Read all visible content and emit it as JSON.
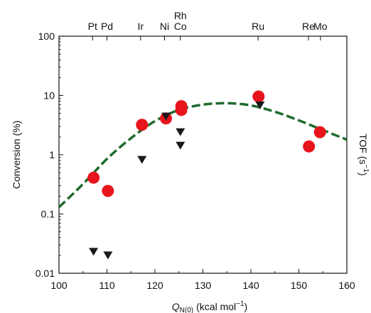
{
  "chart_data": {
    "type": "scatter",
    "xlabel_main": "Q",
    "xlabel_subscript": "N(0)",
    "xlabel_unit": "(kcal mol",
    "xlabel_unit_exp": "−1",
    "xlabel_unit_close": ")",
    "ylabel_left": "Conversion (%)",
    "ylabel_right_main": "TOF (s",
    "ylabel_right_exp": "−1",
    "ylabel_right_close": ")",
    "xlim": [
      100,
      160
    ],
    "ylim": [
      0.01,
      100
    ],
    "yscale": "log",
    "grid": false,
    "x_ticks": [
      100,
      110,
      120,
      130,
      140,
      150,
      160
    ],
    "x_tick_labels": [
      "100",
      "110",
      "120",
      "130",
      "140",
      "150",
      "160"
    ],
    "y_ticks": [
      0.01,
      0.1,
      1,
      10,
      100
    ],
    "y_tick_labels": [
      "0.01",
      "0.1",
      "1",
      "10",
      "100"
    ],
    "top_axis_elements": [
      {
        "label": "Pt",
        "x": 107
      },
      {
        "label": "Pd",
        "x": 110
      },
      {
        "label": "Ir",
        "x": 117
      },
      {
        "label": "Ni",
        "x": 122
      },
      {
        "label": "Rh\nCo",
        "x": 125.3
      },
      {
        "label": "Ru",
        "x": 141.5
      },
      {
        "label": "Re",
        "x": 152
      },
      {
        "label": "Mo",
        "x": 154.5
      }
    ],
    "series": [
      {
        "marker": "circle",
        "color": "#e8141c",
        "points": [
          {
            "x": 107.2,
            "y": 0.41
          },
          {
            "x": 110.2,
            "y": 0.245
          },
          {
            "x": 117.3,
            "y": 3.2
          },
          {
            "x": 122.3,
            "y": 4.1
          },
          {
            "x": 125.5,
            "y": 5.7
          },
          {
            "x": 125.5,
            "y": 6.6
          },
          {
            "x": 141.6,
            "y": 9.6
          },
          {
            "x": 152.1,
            "y": 1.38
          },
          {
            "x": 154.4,
            "y": 2.4
          }
        ]
      },
      {
        "marker": "triangle-down",
        "color": "#1a1a1a",
        "points": [
          {
            "x": 107.2,
            "y": 0.023
          },
          {
            "x": 110.2,
            "y": 0.02
          },
          {
            "x": 117.3,
            "y": 0.82
          },
          {
            "x": 122.3,
            "y": 4.4
          },
          {
            "x": 125.3,
            "y": 2.4
          },
          {
            "x": 125.3,
            "y": 1.42
          },
          {
            "x": 141.9,
            "y": 6.8
          }
        ]
      },
      {
        "marker": "dashed-line",
        "color": "#1f6b2e",
        "points": [
          {
            "x": 100,
            "y": 0.13
          },
          {
            "x": 105,
            "y": 0.32
          },
          {
            "x": 110,
            "y": 0.85
          },
          {
            "x": 115,
            "y": 1.9
          },
          {
            "x": 120,
            "y": 3.7
          },
          {
            "x": 125,
            "y": 5.7
          },
          {
            "x": 130,
            "y": 7.0
          },
          {
            "x": 135,
            "y": 7.4
          },
          {
            "x": 140,
            "y": 6.8
          },
          {
            "x": 145,
            "y": 5.3
          },
          {
            "x": 150,
            "y": 3.8
          },
          {
            "x": 155,
            "y": 2.6
          },
          {
            "x": 160,
            "y": 1.8
          }
        ]
      }
    ]
  }
}
